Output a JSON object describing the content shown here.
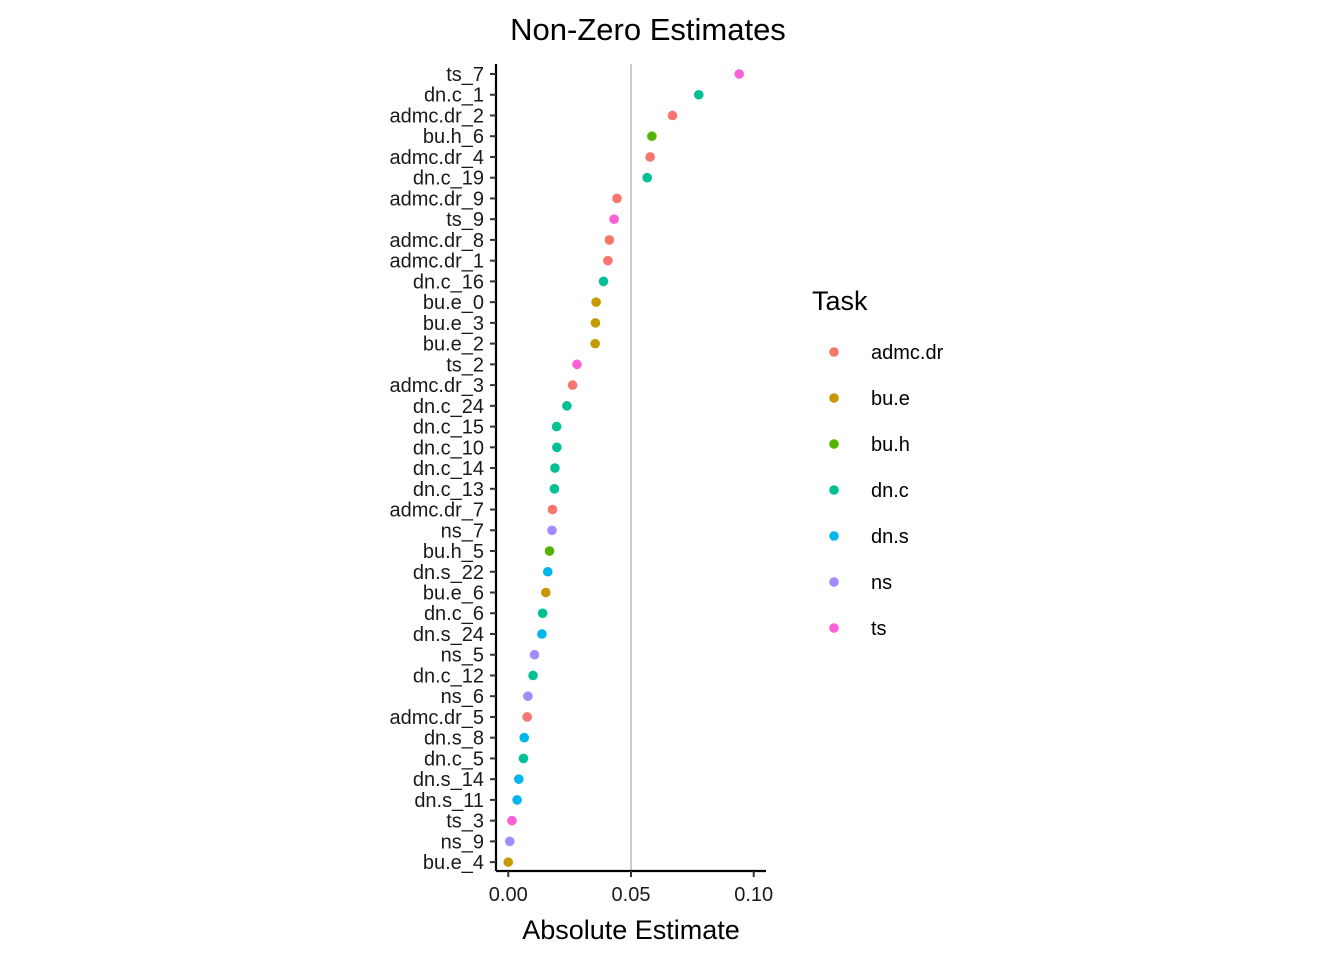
{
  "chart_data": {
    "type": "scatter",
    "title": "Non-Zero Estimates",
    "xlabel": "Absolute Estimate",
    "ylabel": "",
    "xlim": [
      -0.005,
      0.105
    ],
    "xticks": [
      0.0,
      0.05,
      0.1
    ],
    "xtick_labels": [
      "0.00",
      "0.05",
      "0.10"
    ],
    "reference_line_x": 0.05,
    "grid": false,
    "legend": {
      "title": "Task",
      "position": "right",
      "entries": [
        {
          "name": "admc.dr",
          "color": "#F8766D"
        },
        {
          "name": "bu.e",
          "color": "#C49A00"
        },
        {
          "name": "bu.h",
          "color": "#53B400"
        },
        {
          "name": "dn.c",
          "color": "#00C094"
        },
        {
          "name": "dn.s",
          "color": "#00B6EB"
        },
        {
          "name": "ns",
          "color": "#A58AFF"
        },
        {
          "name": "ts",
          "color": "#FB61D7"
        }
      ]
    },
    "points": [
      {
        "label": "ts_7",
        "task": "ts",
        "value": 0.0941
      },
      {
        "label": "dn.c_1",
        "task": "dn.c",
        "value": 0.0776
      },
      {
        "label": "admc.dr_2",
        "task": "admc.dr",
        "value": 0.0669
      },
      {
        "label": "bu.h_6",
        "task": "bu.h",
        "value": 0.0585
      },
      {
        "label": "admc.dr_4",
        "task": "admc.dr",
        "value": 0.0578
      },
      {
        "label": "dn.c_19",
        "task": "dn.c",
        "value": 0.0566
      },
      {
        "label": "admc.dr_9",
        "task": "admc.dr",
        "value": 0.0443
      },
      {
        "label": "ts_9",
        "task": "ts",
        "value": 0.0431
      },
      {
        "label": "admc.dr_8",
        "task": "admc.dr",
        "value": 0.0412
      },
      {
        "label": "admc.dr_1",
        "task": "admc.dr",
        "value": 0.0406
      },
      {
        "label": "dn.c_16",
        "task": "dn.c",
        "value": 0.0388
      },
      {
        "label": "bu.e_0",
        "task": "bu.e",
        "value": 0.0358
      },
      {
        "label": "bu.e_3",
        "task": "bu.e",
        "value": 0.0355
      },
      {
        "label": "bu.e_2",
        "task": "bu.e",
        "value": 0.0354
      },
      {
        "label": "ts_2",
        "task": "ts",
        "value": 0.028
      },
      {
        "label": "admc.dr_3",
        "task": "admc.dr",
        "value": 0.0262
      },
      {
        "label": "dn.c_24",
        "task": "dn.c",
        "value": 0.0239
      },
      {
        "label": "dn.c_15",
        "task": "dn.c",
        "value": 0.0197
      },
      {
        "label": "dn.c_10",
        "task": "dn.c",
        "value": 0.0198
      },
      {
        "label": "dn.c_14",
        "task": "dn.c",
        "value": 0.019
      },
      {
        "label": "dn.c_13",
        "task": "dn.c",
        "value": 0.0188
      },
      {
        "label": "admc.dr_7",
        "task": "admc.dr",
        "value": 0.018
      },
      {
        "label": "ns_7",
        "task": "ns",
        "value": 0.0178
      },
      {
        "label": "bu.h_5",
        "task": "bu.h",
        "value": 0.0168
      },
      {
        "label": "dn.s_22",
        "task": "dn.s",
        "value": 0.0161
      },
      {
        "label": "bu.e_6",
        "task": "bu.e",
        "value": 0.0153
      },
      {
        "label": "dn.c_6",
        "task": "dn.c",
        "value": 0.014
      },
      {
        "label": "dn.s_24",
        "task": "dn.s",
        "value": 0.0137
      },
      {
        "label": "ns_5",
        "task": "ns",
        "value": 0.0107
      },
      {
        "label": "dn.c_12",
        "task": "dn.c",
        "value": 0.0101
      },
      {
        "label": "ns_6",
        "task": "ns",
        "value": 0.008
      },
      {
        "label": "admc.dr_5",
        "task": "admc.dr",
        "value": 0.0077
      },
      {
        "label": "dn.s_8",
        "task": "dn.s",
        "value": 0.0065
      },
      {
        "label": "dn.c_5",
        "task": "dn.c",
        "value": 0.0062
      },
      {
        "label": "dn.s_14",
        "task": "dn.s",
        "value": 0.0043
      },
      {
        "label": "dn.s_11",
        "task": "dn.s",
        "value": 0.0036
      },
      {
        "label": "ts_3",
        "task": "ts",
        "value": 0.0015
      },
      {
        "label": "ns_9",
        "task": "ns",
        "value": 0.0006
      },
      {
        "label": "bu.e_4",
        "task": "bu.e",
        "value": 0.0
      }
    ]
  }
}
